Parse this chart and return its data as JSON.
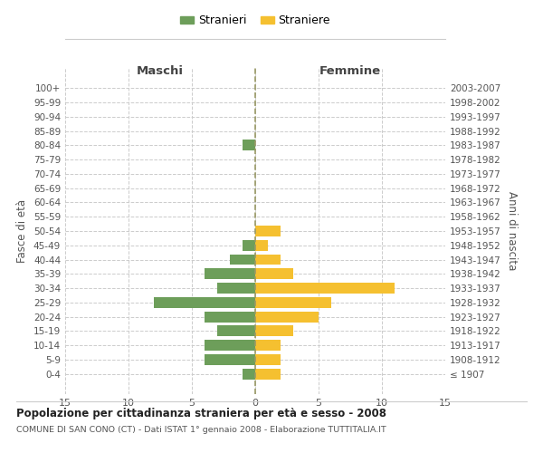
{
  "age_groups": [
    "100+",
    "95-99",
    "90-94",
    "85-89",
    "80-84",
    "75-79",
    "70-74",
    "65-69",
    "60-64",
    "55-59",
    "50-54",
    "45-49",
    "40-44",
    "35-39",
    "30-34",
    "25-29",
    "20-24",
    "15-19",
    "10-14",
    "5-9",
    "0-4"
  ],
  "birth_years": [
    "≤ 1907",
    "1908-1912",
    "1913-1917",
    "1918-1922",
    "1923-1927",
    "1928-1932",
    "1933-1937",
    "1938-1942",
    "1943-1947",
    "1948-1952",
    "1953-1957",
    "1958-1962",
    "1963-1967",
    "1968-1972",
    "1973-1977",
    "1978-1982",
    "1983-1987",
    "1988-1992",
    "1993-1997",
    "1998-2002",
    "2003-2007"
  ],
  "maschi": [
    0,
    0,
    0,
    0,
    1,
    0,
    0,
    0,
    0,
    0,
    0,
    1,
    2,
    4,
    3,
    8,
    4,
    3,
    4,
    4,
    1
  ],
  "femmine": [
    0,
    0,
    0,
    0,
    0,
    0,
    0,
    0,
    0,
    0,
    2,
    1,
    2,
    3,
    11,
    6,
    5,
    3,
    2,
    2,
    2
  ],
  "color_maschi": "#6d9e5a",
  "color_femmine": "#f5c030",
  "title": "Popolazione per cittadinanza straniera per età e sesso - 2008",
  "subtitle": "COMUNE DI SAN CONO (CT) - Dati ISTAT 1° gennaio 2008 - Elaborazione TUTTITALIA.IT",
  "ylabel_left": "Fasce di età",
  "ylabel_right": "Anni di nascita",
  "xlabel_maschi": "Maschi",
  "xlabel_femmine": "Femmine",
  "legend_maschi": "Stranieri",
  "legend_femmine": "Straniere",
  "xlim": 15,
  "background_color": "#ffffff",
  "grid_color": "#cccccc"
}
